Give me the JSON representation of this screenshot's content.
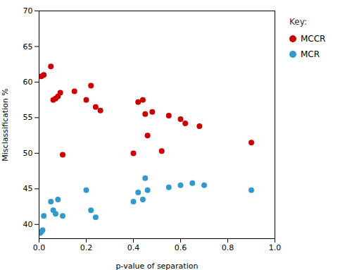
{
  "chart_data": {
    "type": "scatter",
    "xlabel": "p-value of separation",
    "ylabel": "Misclassification %",
    "xlim": [
      0.0,
      1.0
    ],
    "ylim": [
      38,
      70
    ],
    "xticks": [
      {
        "value": 0,
        "label": "0.0"
      },
      0.2,
      0.4,
      0.6,
      0.8,
      {
        "value": 1,
        "label": "1.0"
      }
    ],
    "yticks": [
      40,
      45,
      50,
      55,
      60,
      65,
      70
    ],
    "grid": false,
    "legend": "right",
    "annotations": [
      "Key:"
    ],
    "series": [
      {
        "name": "MCCR",
        "color": "#CC0000",
        "x": [
          0.01,
          0.02,
          0.05,
          0.06,
          0.07,
          0.08,
          0.09,
          0.1,
          0.15,
          0.2,
          0.22,
          0.24,
          0.26,
          0.4,
          0.42,
          0.44,
          0.45,
          0.46,
          0.48,
          0.52,
          0.55,
          0.6,
          0.62,
          0.68,
          0.9
        ],
        "values": [
          60.8,
          61.0,
          62.2,
          57.5,
          57.7,
          58.0,
          58.5,
          49.8,
          58.7,
          57.5,
          59.5,
          56.5,
          56.0,
          50.0,
          57.2,
          57.5,
          55.5,
          52.5,
          55.8,
          50.3,
          55.3,
          54.8,
          54.2,
          53.8,
          51.5
        ]
      },
      {
        "name": "MCR",
        "color": "#3399CC",
        "x": [
          0.005,
          0.01,
          0.015,
          0.02,
          0.05,
          0.06,
          0.07,
          0.08,
          0.1,
          0.2,
          0.22,
          0.24,
          0.4,
          0.42,
          0.44,
          0.45,
          0.46,
          0.55,
          0.6,
          0.65,
          0.7,
          0.9
        ],
        "values": [
          38.8,
          39.0,
          39.2,
          41.2,
          43.2,
          42.0,
          41.5,
          43.5,
          41.2,
          44.8,
          42.0,
          41.0,
          43.2,
          44.5,
          43.5,
          46.5,
          44.8,
          45.2,
          45.5,
          45.8,
          45.5,
          44.8
        ]
      }
    ]
  }
}
